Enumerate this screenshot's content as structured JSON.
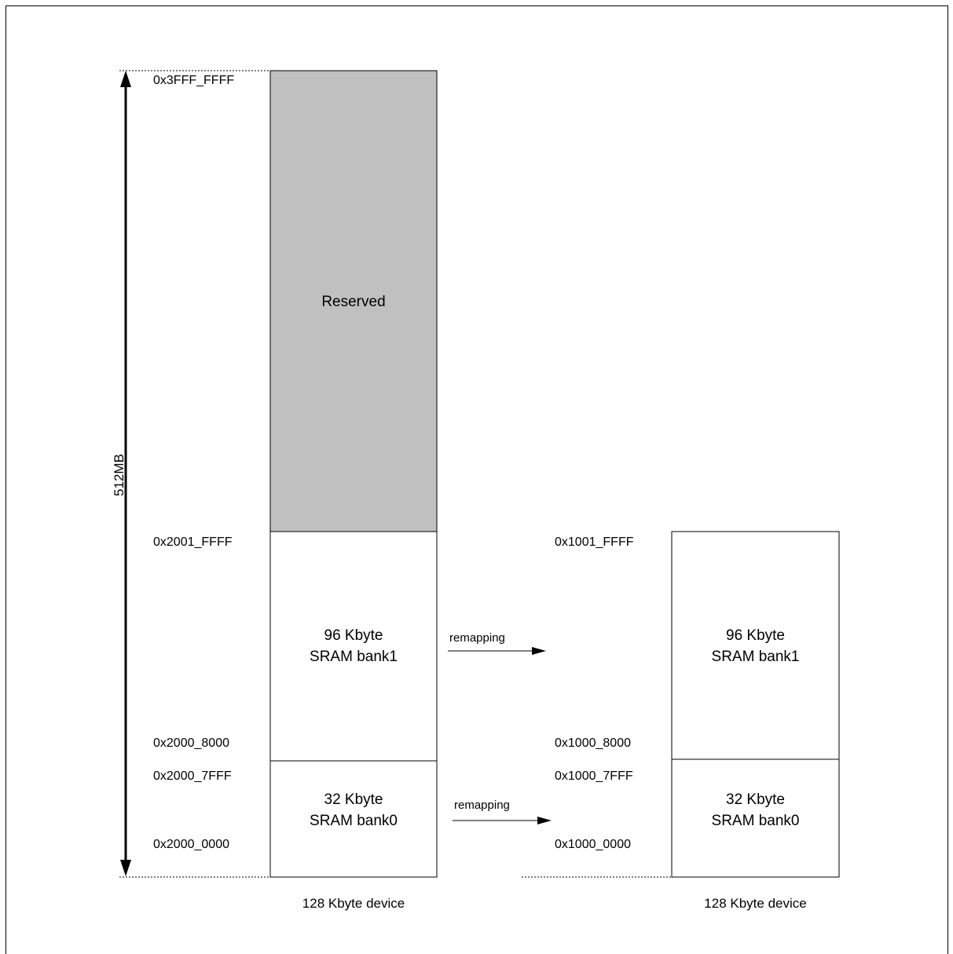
{
  "left_map": {
    "size_label": "512MB",
    "addresses": {
      "top": "0x3FFF_FFFF",
      "bank1_top": "0x2001_FFFF",
      "bank1_bottom": "0x2000_8000",
      "bank0_top": "0x2000_7FFF",
      "bank0_bottom": "0x2000_0000"
    },
    "reserved_label": "Reserved",
    "bank1": {
      "line1": "96 Kbyte",
      "line2": "SRAM bank1"
    },
    "bank0": {
      "line1": "32 Kbyte",
      "line2": "SRAM bank0"
    },
    "caption": "128 Kbyte device",
    "reserved_color": "#c0c0c0"
  },
  "arrows": {
    "upper_label": "remapping",
    "lower_label": "remapping"
  },
  "right_map": {
    "addresses": {
      "bank1_top": "0x1001_FFFF",
      "bank1_bottom": "0x1000_8000",
      "bank0_top": "0x1000_7FFF",
      "bank0_bottom": "0x1000_0000"
    },
    "bank1": {
      "line1": "96 Kbyte",
      "line2": "SRAM bank1"
    },
    "bank0": {
      "line1": "32 Kbyte",
      "line2": "SRAM bank0"
    },
    "caption": "128 Kbyte device"
  }
}
